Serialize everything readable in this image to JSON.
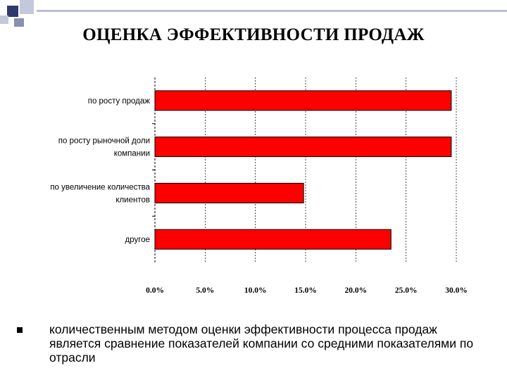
{
  "slide": {
    "title": "ОЦЕНКА ЭФФЕКТИВНОСТИ ПРОДАЖ",
    "bullet_text": "количественным методом оценки эффективности процесса продаж является сравнение показателей компании со средними показателями по отрасли"
  },
  "colors": {
    "bar": "#ff0000",
    "deco_dark": "#2d3a6e",
    "deco_light": "#b9bdd6"
  },
  "chart_data": {
    "type": "bar",
    "orientation": "horizontal",
    "categories": [
      [
        "по росту продаж"
      ],
      [
        "по росту рыночной доли",
        "компании"
      ],
      [
        "по увеличение количества",
        "клиентов"
      ],
      [
        "другое"
      ]
    ],
    "values": [
      29.5,
      29.5,
      14.8,
      23.5
    ],
    "xlim": [
      0,
      30
    ],
    "xticks": [
      "0.0%",
      "5.0%",
      "10.0%",
      "15.0%",
      "20.0%",
      "25.0%",
      "30.0%"
    ],
    "grid": true
  }
}
